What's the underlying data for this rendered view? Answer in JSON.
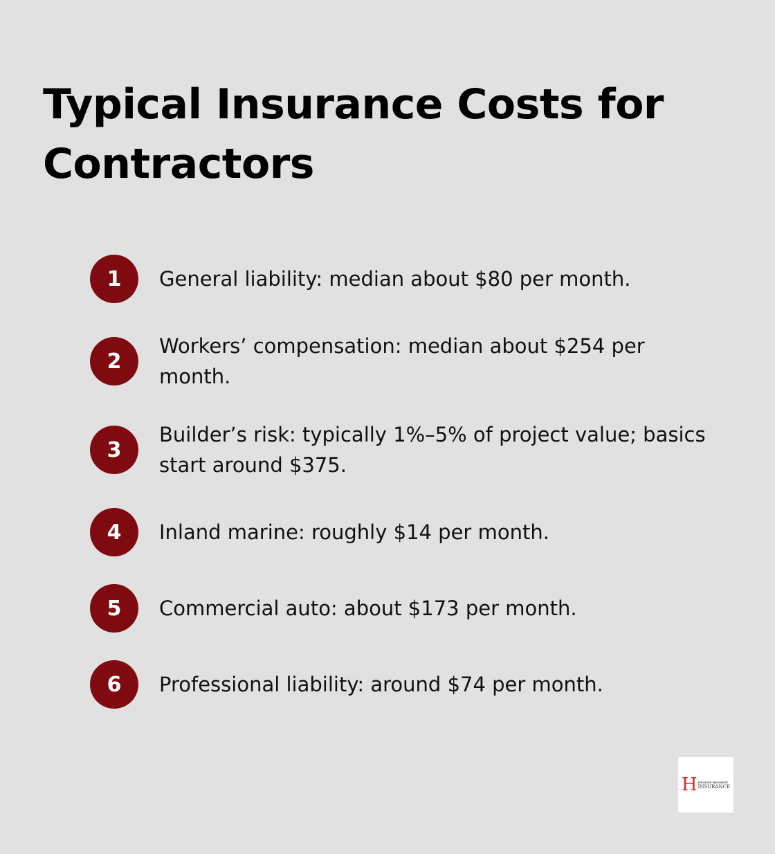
{
  "title": "Typical Insurance Costs for Contractors",
  "items": [
    {
      "number": "1",
      "text": "General liability: median about $80 per month."
    },
    {
      "number": "2",
      "text": "Workers’ compensation: median about $254 per month."
    },
    {
      "number": "3",
      "text": "Builder’s risk: typically 1%–5% of project value; basics start around $375."
    },
    {
      "number": "4",
      "text": "Inland marine: roughly $14 per month."
    },
    {
      "number": "5",
      "text": "Commercial auto: about $173 per month."
    },
    {
      "number": "6",
      "text": "Professional liability: around $74 per month."
    }
  ],
  "logo": {
    "letter": "H",
    "line1": "HEATON BENNETT",
    "line2": "INSURANCE"
  },
  "colors": {
    "accent": "#7f0b10",
    "background": "#e0e1e0"
  }
}
